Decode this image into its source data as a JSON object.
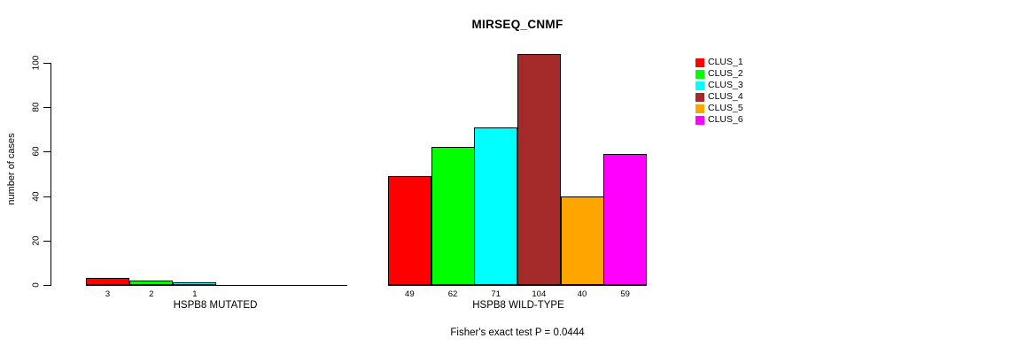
{
  "title": "MIRSEQ_CNMF",
  "chart_data": {
    "type": "bar",
    "title": "MIRSEQ_CNMF",
    "ylabel": "number of cases",
    "xlabel": "",
    "ylim": [
      0,
      100
    ],
    "yticks": [
      0,
      20,
      40,
      60,
      80,
      100
    ],
    "grid": false,
    "legend_position": "top-right",
    "series_names": [
      "CLUS_1",
      "CLUS_2",
      "CLUS_3",
      "CLUS_4",
      "CLUS_5",
      "CLUS_6"
    ],
    "series_colors": [
      "#FF0000",
      "#00FF00",
      "#00FFFF",
      "#A52A2A",
      "#FFA500",
      "#FF00FF"
    ],
    "groups": [
      {
        "label": "HSPB8 MUTATED",
        "values": [
          3,
          2,
          1,
          0,
          0,
          0
        ]
      },
      {
        "label": "HSPB8 WILD-TYPE",
        "values": [
          49,
          62,
          71,
          104,
          40,
          59
        ]
      }
    ],
    "bar_value_labels": [
      [
        "3",
        "2",
        "1",
        "",
        "",
        ""
      ],
      [
        "49",
        "62",
        "71",
        "104",
        "40",
        "59"
      ]
    ]
  },
  "annotation": {
    "fisher_text": "Fisher's exact test P = 0.0444"
  }
}
